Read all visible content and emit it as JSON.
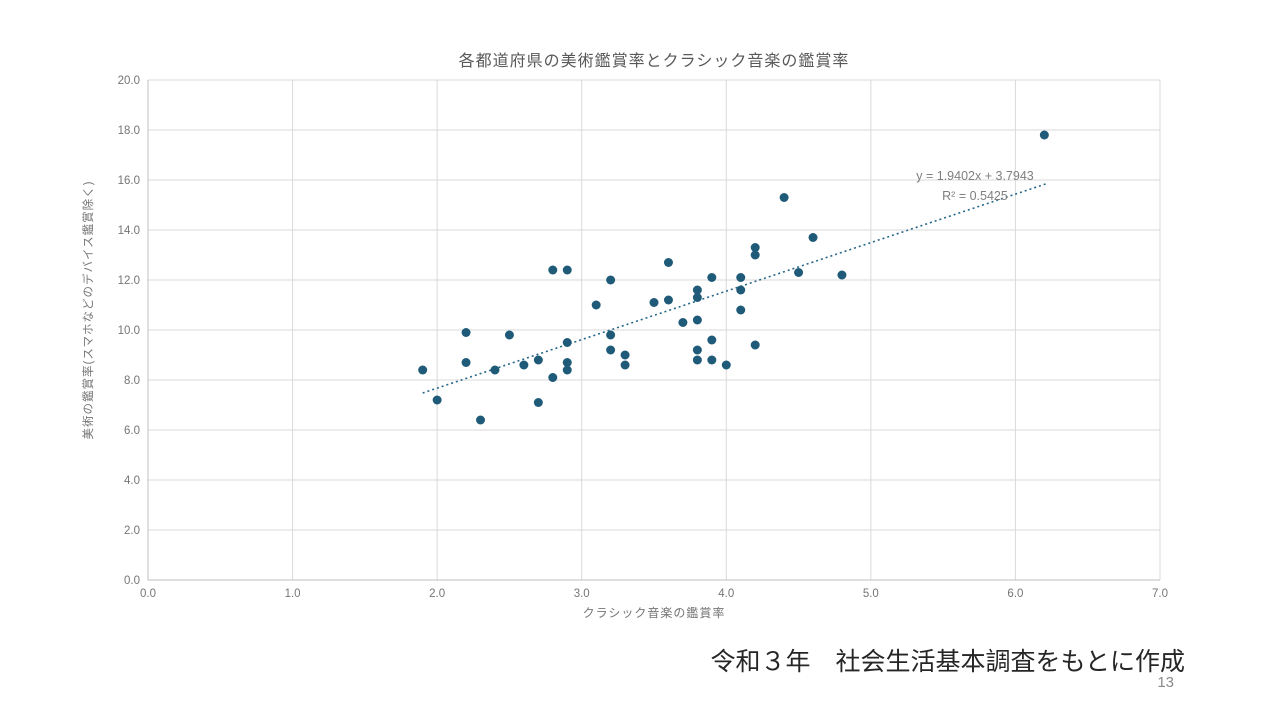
{
  "slide": {
    "source_note": "令和３年　社会生活基本調査をもとに作成",
    "page_number": "13"
  },
  "chart_data": {
    "type": "scatter",
    "title": "各都道府県の美術鑑賞率とクラシック音楽の鑑賞率",
    "xlabel": "クラシック音楽の鑑賞率",
    "ylabel": "美術の鑑賞率(スマホなどのデバイス鑑賞除く)",
    "xlim": [
      0.0,
      7.0
    ],
    "ylim": [
      0.0,
      20.0
    ],
    "x_tick_labels": [
      "0.0",
      "1.0",
      "2.0",
      "3.0",
      "4.0",
      "5.0",
      "6.0",
      "7.0"
    ],
    "y_tick_labels": [
      "0.0",
      "2.0",
      "4.0",
      "6.0",
      "8.0",
      "10.0",
      "12.0",
      "14.0",
      "16.0",
      "18.0",
      "20.0"
    ],
    "grid": true,
    "legend": "none",
    "points": [
      [
        1.9,
        8.4
      ],
      [
        2.0,
        7.2
      ],
      [
        2.2,
        9.9
      ],
      [
        2.2,
        8.7
      ],
      [
        2.3,
        6.4
      ],
      [
        2.4,
        8.4
      ],
      [
        2.5,
        9.8
      ],
      [
        2.6,
        8.6
      ],
      [
        2.7,
        8.8
      ],
      [
        2.7,
        7.1
      ],
      [
        2.8,
        12.4
      ],
      [
        2.8,
        8.1
      ],
      [
        2.9,
        12.4
      ],
      [
        2.9,
        9.5
      ],
      [
        2.9,
        8.7
      ],
      [
        2.9,
        8.4
      ],
      [
        3.1,
        11.0
      ],
      [
        3.2,
        12.0
      ],
      [
        3.2,
        9.8
      ],
      [
        3.2,
        9.2
      ],
      [
        3.3,
        9.0
      ],
      [
        3.3,
        8.6
      ],
      [
        3.5,
        11.1
      ],
      [
        3.6,
        12.7
      ],
      [
        3.6,
        11.2
      ],
      [
        3.7,
        10.3
      ],
      [
        3.8,
        11.6
      ],
      [
        3.8,
        11.3
      ],
      [
        3.8,
        10.4
      ],
      [
        3.8,
        9.2
      ],
      [
        3.8,
        8.8
      ],
      [
        3.9,
        12.1
      ],
      [
        3.9,
        9.6
      ],
      [
        3.9,
        8.8
      ],
      [
        4.0,
        8.6
      ],
      [
        4.1,
        12.1
      ],
      [
        4.1,
        11.6
      ],
      [
        4.1,
        10.8
      ],
      [
        4.2,
        13.3
      ],
      [
        4.2,
        13.0
      ],
      [
        4.2,
        9.4
      ],
      [
        4.4,
        15.3
      ],
      [
        4.5,
        12.3
      ],
      [
        4.6,
        13.7
      ],
      [
        4.8,
        12.2
      ],
      [
        6.2,
        17.8
      ]
    ],
    "trendline": {
      "slope": 1.9402,
      "intercept": 3.7943,
      "x_start": 1.9,
      "x_end": 6.22,
      "style": "dotted",
      "equation_label": "y = 1.9402x + 3.7943",
      "r2_label": "R² = 0.5425"
    },
    "colors": {
      "point": "#1f5b78",
      "trendline": "#27678a",
      "gridline": "#d9d9d9",
      "axis_line": "#bfbfbf",
      "tick_text": "#757575"
    }
  }
}
